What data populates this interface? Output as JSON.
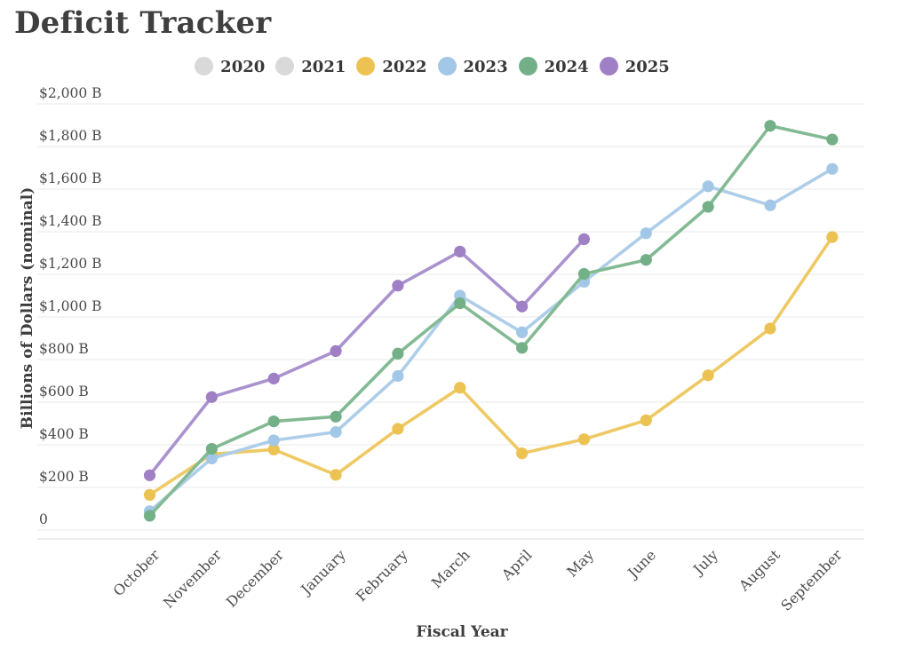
{
  "page_title": "Deficit Tracker",
  "legend": {
    "position": "top",
    "items": [
      {
        "label": "2020",
        "color": "#d9d9d9",
        "active": false
      },
      {
        "label": "2021",
        "color": "#d9d9d9",
        "active": false
      },
      {
        "label": "2022",
        "color": "#ecc352",
        "active": true
      },
      {
        "label": "2023",
        "color": "#a3c7e6",
        "active": true
      },
      {
        "label": "2024",
        "color": "#74b087",
        "active": true
      },
      {
        "label": "2025",
        "color": "#9f80c4",
        "active": true
      }
    ]
  },
  "chart_data": {
    "type": "line",
    "title": "Deficit Tracker",
    "xlabel": "Fiscal Year",
    "ylabel": "Billions of Dollars (nominal)",
    "grid": true,
    "ylim": [
      0,
      2000
    ],
    "y_ticks": [
      0,
      200,
      400,
      600,
      800,
      1000,
      1200,
      1400,
      1600,
      1800,
      2000
    ],
    "y_tick_labels": [
      "0",
      "$200 B",
      "$400 B",
      "$600 B",
      "$800 B",
      "$1,000 B",
      "$1,200 B",
      "$1,400 B",
      "$1,600 B",
      "$1,800 B",
      "$2,000 B"
    ],
    "categories": [
      "October",
      "November",
      "December",
      "January",
      "February",
      "March",
      "April",
      "May",
      "June",
      "July",
      "August",
      "September"
    ],
    "series": [
      {
        "name": "2020",
        "color": "#d9d9d9",
        "line_color": "#d9d9d9",
        "visible": false,
        "values": []
      },
      {
        "name": "2021",
        "color": "#d9d9d9",
        "line_color": "#d9d9d9",
        "visible": false,
        "values": []
      },
      {
        "name": "2022",
        "color": "#ecc352",
        "line_color": "#eec964",
        "visible": true,
        "values": [
          165,
          356,
          378,
          259,
          475,
          668,
          360,
          426,
          515,
          726,
          946,
          1375
        ]
      },
      {
        "name": "2023",
        "color": "#a3c7e6",
        "line_color": "#aecde9",
        "visible": true,
        "values": [
          88,
          336,
          421,
          460,
          723,
          1100,
          928,
          1165,
          1393,
          1613,
          1524,
          1695
        ]
      },
      {
        "name": "2024",
        "color": "#74b087",
        "line_color": "#83ba94",
        "visible": true,
        "values": [
          67,
          381,
          510,
          532,
          828,
          1064,
          855,
          1202,
          1268,
          1517,
          1897,
          1833
        ]
      },
      {
        "name": "2025",
        "color": "#9f80c4",
        "line_color": "#aa92ce",
        "visible": true,
        "values": [
          257,
          624,
          711,
          840,
          1147,
          1307,
          1049,
          1365
        ]
      }
    ]
  }
}
